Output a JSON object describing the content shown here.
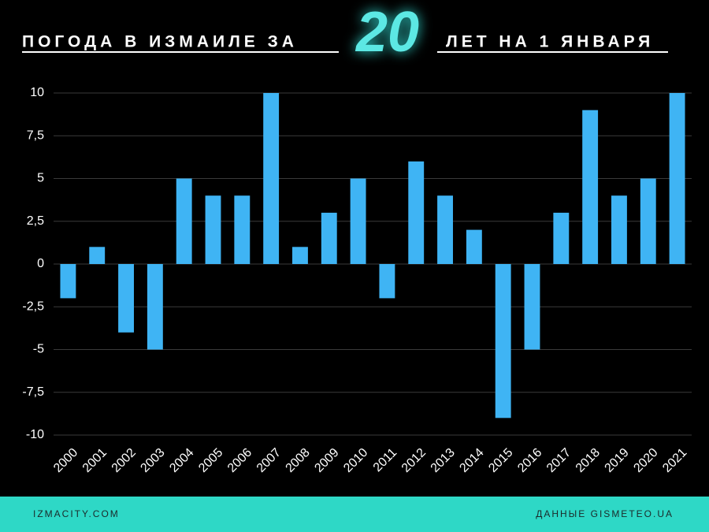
{
  "chart_data": {
    "type": "bar",
    "title": [
      "ПОГОДА В ИЗМАИЛЕ ЗА",
      "20",
      "ЛЕТ НА 1 ЯНВАРЯ"
    ],
    "categories": [
      "2000",
      "2001",
      "2002",
      "2003",
      "2004",
      "2005",
      "2006",
      "2007",
      "2008",
      "2009",
      "2010",
      "2011",
      "2012",
      "2013",
      "2014",
      "2015",
      "2016",
      "2017",
      "2018",
      "2019",
      "2020",
      "2021"
    ],
    "values": [
      -2,
      1,
      -4,
      -5,
      5,
      4,
      4,
      10,
      1,
      3,
      5,
      -2,
      6,
      4,
      2,
      -9,
      -5,
      3,
      9,
      4,
      5,
      10
    ],
    "color": "#3fb4f4",
    "ylim": [
      -10,
      10
    ],
    "yticks": [
      10,
      {
        "value": 7.5,
        "label": "7,5"
      },
      5,
      {
        "value": 2.5,
        "label": "2,5"
      },
      0,
      {
        "value": -2.5,
        "label": "-2,5"
      },
      -5,
      {
        "value": -7.5,
        "label": "-7,5"
      },
      -10
    ],
    "grid": true
  },
  "footer": {
    "left": "IZMACITY.COM",
    "right": "ДАННЫЕ GISMETEO.UA"
  }
}
